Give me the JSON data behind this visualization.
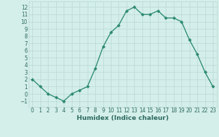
{
  "x": [
    0,
    1,
    2,
    3,
    4,
    5,
    6,
    7,
    8,
    9,
    10,
    11,
    12,
    13,
    14,
    15,
    16,
    17,
    18,
    19,
    20,
    21,
    22,
    23
  ],
  "y": [
    2,
    1,
    0,
    -0.5,
    -1,
    0,
    0.5,
    1,
    3.5,
    6.5,
    8.5,
    9.5,
    11.5,
    12,
    11,
    11,
    11.5,
    10.5,
    10.5,
    10,
    7.5,
    5.5,
    3,
    1
  ],
  "line_color": "#2e8b72",
  "marker": "D",
  "marker_size": 2.2,
  "bg_color": "#d4eeea",
  "grid_color": "#b8d8d4",
  "xlabel": "Humidex (Indice chaleur)",
  "ylim": [
    -1.8,
    12.8
  ],
  "xlim": [
    -0.5,
    23.5
  ],
  "yticks": [
    -1,
    0,
    1,
    2,
    3,
    4,
    5,
    6,
    7,
    8,
    9,
    10,
    11,
    12
  ],
  "xticks": [
    0,
    1,
    2,
    3,
    4,
    5,
    6,
    7,
    8,
    9,
    10,
    11,
    12,
    13,
    14,
    15,
    16,
    17,
    18,
    19,
    20,
    21,
    22,
    23
  ],
  "font_color": "#2e6b60",
  "tick_fontsize": 5.5,
  "xlabel_fontsize": 6.8,
  "line_width": 1.0
}
